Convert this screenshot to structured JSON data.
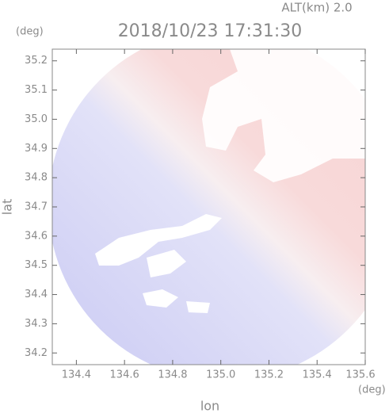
{
  "chart_data": {
    "type": "map",
    "title": "2018/10/23 17:31:30",
    "subtitle": "ALT(km) 2.0",
    "y_unit": "(deg)",
    "x_unit": "(deg)",
    "xlabel": "lon",
    "ylabel": "lat",
    "xlim": [
      134.3,
      135.6
    ],
    "ylim": [
      34.16,
      35.24
    ],
    "xticks": [
      134.4,
      134.6,
      134.8,
      135.0,
      135.2,
      135.4,
      135.6
    ],
    "yticks": [
      34.2,
      34.3,
      34.4,
      34.5,
      34.6,
      34.7,
      34.8,
      34.9,
      35.0,
      35.1,
      35.2
    ]
  }
}
